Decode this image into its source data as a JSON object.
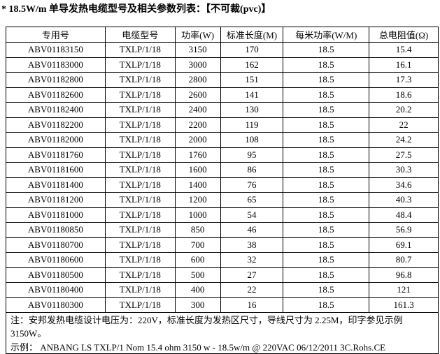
{
  "title": "* 18.5W/m 单导发热电缆型号及相关参数列表：【不可裁(pvc)】",
  "headers": [
    "专用号",
    "电缆型号",
    "功率(W)",
    "标准长度(M)",
    "每米功率(W/M)",
    "总电阻值(Ω)"
  ],
  "rows": [
    [
      "ABV01183150",
      "TXLP/1/18",
      "3150",
      "170",
      "18.5",
      "15.4"
    ],
    [
      "ABV01183000",
      "TXLP/1/18",
      "3000",
      "162",
      "18.5",
      "16.1"
    ],
    [
      "ABV01182800",
      "TXLP/1/18",
      "2800",
      "151",
      "18.5",
      "17.3"
    ],
    [
      "ABV01182600",
      "TXLP/1/18",
      "2600",
      "141",
      "18.5",
      "18.6"
    ],
    [
      "ABV01182400",
      "TXLP/1/18",
      "2400",
      "130",
      "18.5",
      "20.2"
    ],
    [
      "ABV01182200",
      "TXLP/1/18",
      "2200",
      "119",
      "18.5",
      "22"
    ],
    [
      "ABV01182000",
      "TXLP/1/18",
      "2000",
      "108",
      "18.5",
      "24.2"
    ],
    [
      "ABV01181760",
      "TXLP/1/18",
      "1760",
      "95",
      "18.5",
      "27.5"
    ],
    [
      "ABV01181600",
      "TXLP/1/18",
      "1600",
      "86",
      "18.5",
      "30.3"
    ],
    [
      "ABV01181400",
      "TXLP/1/18",
      "1400",
      "76",
      "18.5",
      "34.6"
    ],
    [
      "ABV01181200",
      "TXLP/1/18",
      "1200",
      "65",
      "18.5",
      "40.3"
    ],
    [
      "ABV01181000",
      "TXLP/1/18",
      "1000",
      "54",
      "18.5",
      "48.4"
    ],
    [
      "ABV01180850",
      "TXLP/1/18",
      "850",
      "46",
      "18.5",
      "56.9"
    ],
    [
      "ABV01180700",
      "TXLP/1/18",
      "700",
      "38",
      "18.5",
      "69.1"
    ],
    [
      "ABV01180600",
      "TXLP/1/18",
      "600",
      "32",
      "18.5",
      "80.7"
    ],
    [
      "ABV01180500",
      "TXLP/1/18",
      "500",
      "27",
      "18.5",
      "96.8"
    ],
    [
      "ABV01180400",
      "TXLP/1/18",
      "400",
      "22",
      "18.5",
      "121"
    ],
    [
      "ABV01180300",
      "TXLP/1/18",
      "300",
      "16",
      "18.5",
      "161.3"
    ]
  ],
  "note": "注：安邦发热电缆设计电压为：220V，标准长度为发热区尺寸，导线尺寸为 2.25M，印字参见示例 3150W。",
  "example": "示例：  ANBANG LS TXLP/1 Nom 15.4 ohm 3150 w - 18.5w/m @ 220VAC 06/12/2011 3C.Rohs.CE"
}
